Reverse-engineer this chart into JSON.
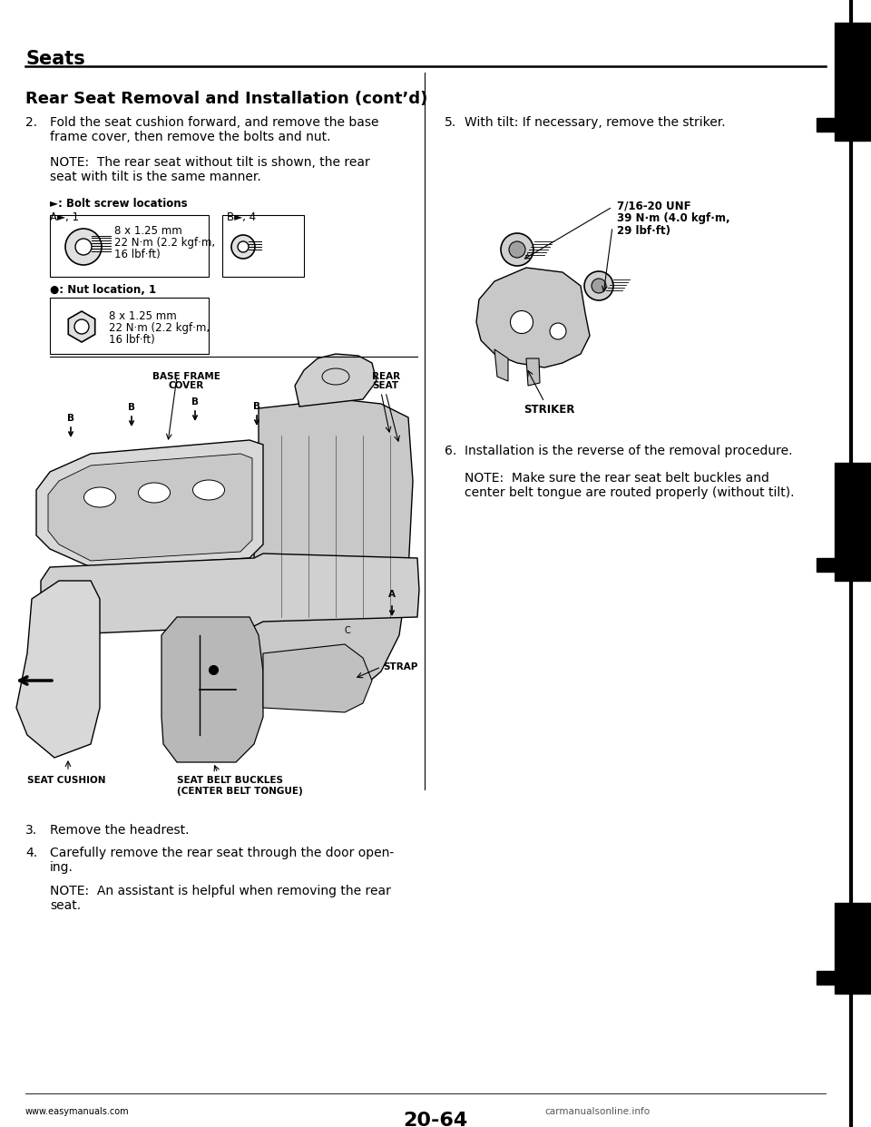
{
  "bg_color": "#ffffff",
  "title_section": "Seats",
  "section_title": "Rear Seat Removal and Installation (cont’d)",
  "step2_line1": "Fold the seat cushion forward, and remove the base",
  "step2_line2": "frame cover, then remove the bolts and nut.",
  "note1_line1": "NOTE:  The rear seat without tilt is shown, the rear",
  "note1_line2": "seat with tilt is the same manner.",
  "bolt_label": "►: Bolt screw locations",
  "bolt_a_label": "A►, 1",
  "bolt_b_label": "B►, 4",
  "bolt_a_spec_1": "8 x 1.25 mm",
  "bolt_a_spec_2": "22 N·m (2.2 kgf·m,",
  "bolt_a_spec_3": "16 lbf·ft)",
  "nut_label": "●: Nut location, 1",
  "nut_spec_1": "8 x 1.25 mm",
  "nut_spec_2": "22 N·m (2.2 kgf·m,",
  "nut_spec_3": "16 lbf·ft)",
  "label_base_frame_1": "BASE FRAME",
  "label_base_frame_2": "COVER",
  "label_rear_seat_1": "REAR",
  "label_rear_seat_2": "SEAT",
  "label_strap": "STRAP",
  "label_seat_cushion": "SEAT CUSHION",
  "label_seat_belt_1": "SEAT BELT BUCKLES",
  "label_seat_belt_2": "(CENTER BELT TONGUE)",
  "step5_text": "With tilt: If necessary, remove the striker.",
  "torque_line1": "7/16-20 UNF",
  "torque_line2": "39 N·m (4.0 kgf·m,",
  "torque_line3": "29 lbf·ft)",
  "label_striker": "STRIKER",
  "step6_text": "Installation is the reverse of the removal procedure.",
  "note2_line1": "NOTE:  Make sure the rear seat belt buckles and",
  "note2_line2": "center belt tongue are routed properly (without tilt).",
  "step3_text": "Remove the headrest.",
  "step4_line1": "Carefully remove the rear seat through the door open-",
  "step4_line2": "ing.",
  "note3_line1": "NOTE:  An assistant is helpful when removing the rear",
  "note3_line2": "seat.",
  "page_num": "20-64",
  "website": "www.easymanuals.com",
  "watermark": "carmanualsonline.info"
}
